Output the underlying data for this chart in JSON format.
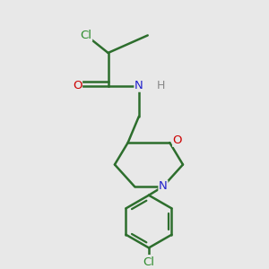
{
  "bg_color": "#e8e8e8",
  "bond_color": "#2d6e2d",
  "bond_width": 1.8,
  "atom_colors": {
    "Cl": "#2d8c2d",
    "O": "#cc0000",
    "N": "#2222cc",
    "H": "#888888"
  },
  "figsize": [
    3.0,
    3.0
  ],
  "dpi": 100,
  "xlim": [
    -0.1,
    1.1
  ],
  "ylim": [
    -0.05,
    1.1
  ]
}
